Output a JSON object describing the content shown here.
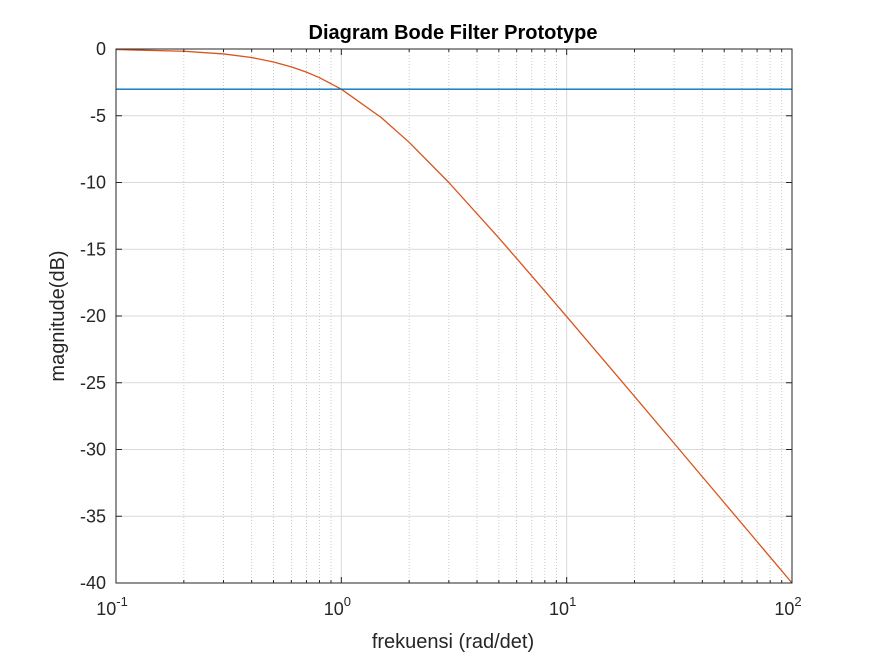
{
  "chart_data": {
    "type": "line",
    "title": "Diagram Bode Filter Prototype",
    "xlabel": "frekuensi (rad/det)",
    "ylabel": "magnitude(dB)",
    "xscale": "log",
    "xlim": [
      0.1,
      100
    ],
    "ylim": [
      -40,
      0
    ],
    "x_ticks": [
      {
        "base": "10",
        "exp": "-1",
        "value": 0.1
      },
      {
        "base": "10",
        "exp": "0",
        "value": 1
      },
      {
        "base": "10",
        "exp": "1",
        "value": 10
      },
      {
        "base": "10",
        "exp": "2",
        "value": 100
      }
    ],
    "y_ticks": [
      {
        "label": "0",
        "value": 0
      },
      {
        "label": "-5",
        "value": -5
      },
      {
        "label": "-10",
        "value": -10
      },
      {
        "label": "-15",
        "value": -15
      },
      {
        "label": "-20",
        "value": -20
      },
      {
        "label": "-25",
        "value": -25
      },
      {
        "label": "-30",
        "value": -30
      },
      {
        "label": "-35",
        "value": -35
      },
      {
        "label": "-40",
        "value": -40
      }
    ],
    "grid": true,
    "minor_grid": true,
    "series": [
      {
        "color": "#D95319",
        "x": [
          0.1,
          0.2,
          0.3,
          0.4,
          0.5,
          0.6,
          0.7,
          0.8,
          1,
          1.5,
          2,
          3,
          5,
          7,
          10,
          20,
          30,
          50,
          70,
          100
        ],
        "y": [
          -0.04,
          -0.17,
          -0.37,
          -0.64,
          -0.97,
          -1.34,
          -1.73,
          -2.15,
          -3.01,
          -5.12,
          -6.99,
          -10.0,
          -14.15,
          -17.0,
          -20.04,
          -26.02,
          -29.54,
          -33.98,
          -36.9,
          -40.0
        ]
      },
      {
        "color": "#0072BD",
        "x": [
          0.1,
          100
        ],
        "y": [
          -3.01,
          -3.01
        ]
      }
    ]
  }
}
